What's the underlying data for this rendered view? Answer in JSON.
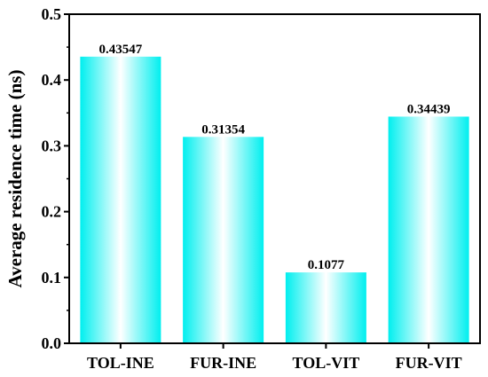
{
  "chart_data": {
    "type": "bar",
    "title": "",
    "xlabel": "",
    "ylabel": "Average residence time (ns)",
    "categories": [
      "TOL-INE",
      "FUR-INE",
      "TOL-VIT",
      "FUR-VIT"
    ],
    "values": [
      0.43547,
      0.31354,
      0.1077,
      0.34439
    ],
    "data_labels": [
      "0.43547",
      "0.31354",
      "0.1077",
      "0.34439"
    ],
    "ylim": [
      0,
      0.5
    ],
    "yticks": [
      0.0,
      0.1,
      0.2,
      0.3,
      0.4,
      0.5
    ],
    "ytick_labels": [
      "0.0",
      "0.1",
      "0.2",
      "0.3",
      "0.4",
      "0.5"
    ],
    "grid": false,
    "legend": "none",
    "bar_fill": "cyan-white-cyan gradient",
    "colors": {
      "bar_edge": "#00f0f0",
      "bar_center": "#ffffff",
      "axis": "#000000"
    }
  }
}
